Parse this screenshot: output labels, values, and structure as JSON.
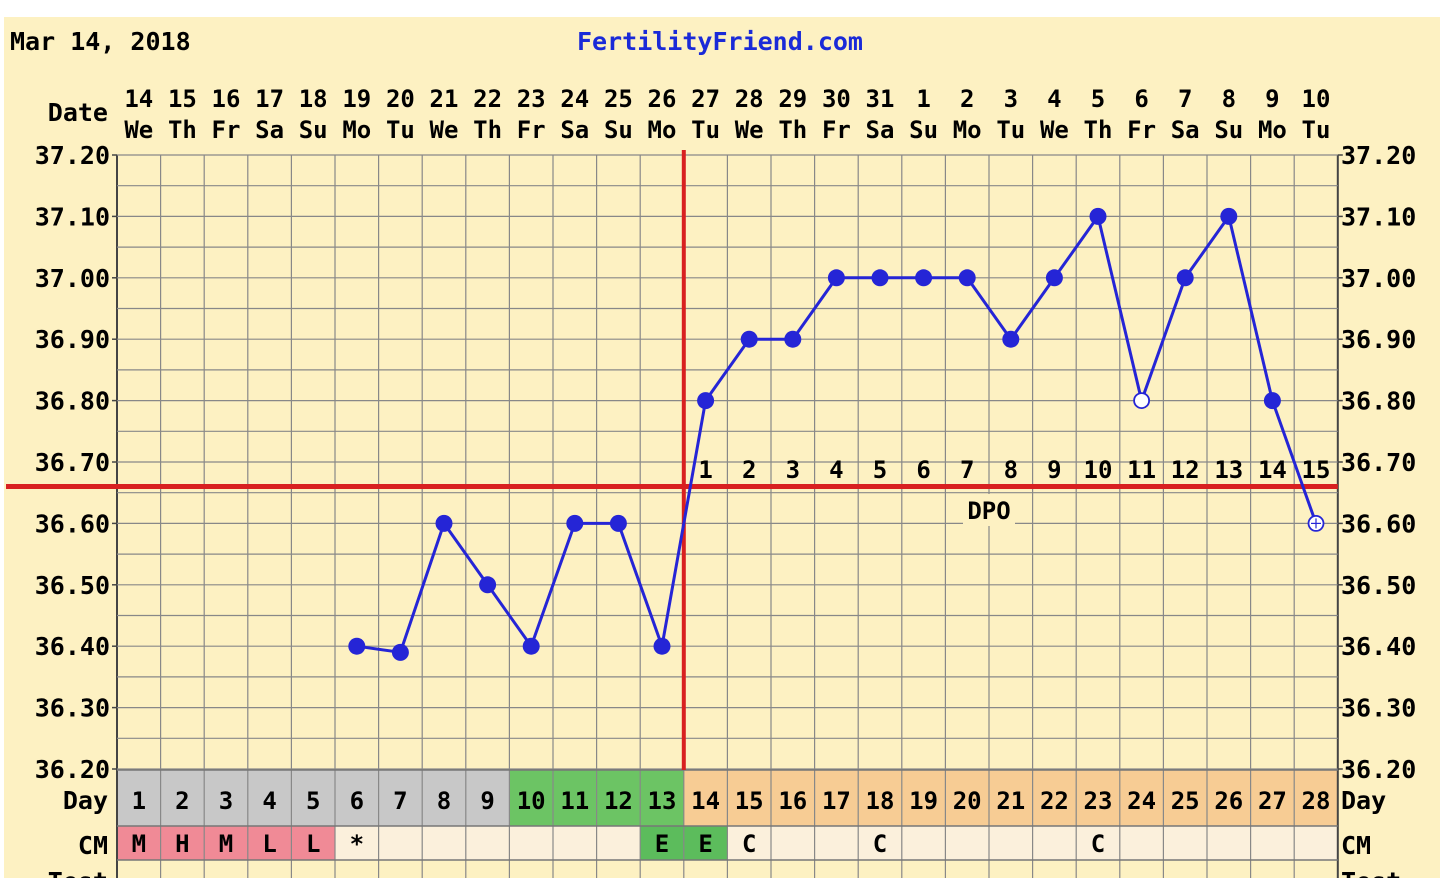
{
  "header": {
    "date": "Mar 14, 2018",
    "site": "FertilityFriend.com"
  },
  "labels": {
    "date": "Date",
    "day": "Day",
    "cm": "CM",
    "test": "Test",
    "dpo": "DPO"
  },
  "colors": {
    "background": "#fdf1c2",
    "grid": "#888888",
    "line": "#2525d6",
    "coverline": "#d82020",
    "site_link": "#1a2ad8",
    "menstruation": "#f08a96",
    "early_days": "#c8c8c8",
    "fertile_days": "#6cc464",
    "luteal_days": "#f7cc94",
    "cm_bg": "#fbf0dc",
    "fertile_cm": "#5cbc5c"
  },
  "chart_data": {
    "type": "line",
    "ylim": [
      36.2,
      37.2
    ],
    "y_ticks": [
      "36.20",
      "36.30",
      "36.40",
      "36.50",
      "36.60",
      "36.70",
      "36.80",
      "36.90",
      "37.00",
      "37.10",
      "37.20"
    ],
    "dates": [
      "14",
      "15",
      "16",
      "17",
      "18",
      "19",
      "20",
      "21",
      "22",
      "23",
      "24",
      "25",
      "26",
      "27",
      "28",
      "29",
      "30",
      "31",
      "1",
      "2",
      "3",
      "4",
      "5",
      "6",
      "7",
      "8",
      "9",
      "10"
    ],
    "weekdays": [
      "We",
      "Th",
      "Fr",
      "Sa",
      "Su",
      "Mo",
      "Tu",
      "We",
      "Th",
      "Fr",
      "Sa",
      "Su",
      "Mo",
      "Tu",
      "We",
      "Th",
      "Fr",
      "Sa",
      "Su",
      "Mo",
      "Tu",
      "We",
      "Th",
      "Fr",
      "Sa",
      "Su",
      "Mo",
      "Tu"
    ],
    "cycle_days": [
      "1",
      "2",
      "3",
      "4",
      "5",
      "6",
      "7",
      "8",
      "9",
      "10",
      "11",
      "12",
      "13",
      "14",
      "15",
      "16",
      "17",
      "18",
      "19",
      "20",
      "21",
      "22",
      "23",
      "24",
      "25",
      "26",
      "27",
      "28"
    ],
    "temperatures": [
      null,
      null,
      null,
      null,
      null,
      36.4,
      36.39,
      36.6,
      36.5,
      36.4,
      36.6,
      36.6,
      36.4,
      36.8,
      36.9,
      36.9,
      37.0,
      37.0,
      37.0,
      37.0,
      36.9,
      37.0,
      37.1,
      36.8,
      37.0,
      37.1,
      36.8,
      36.6
    ],
    "open_points": [
      23,
      27
    ],
    "coverline": 36.66,
    "ovulation_day": 13,
    "dpo": [
      "1",
      "2",
      "3",
      "4",
      "5",
      "6",
      "7",
      "8",
      "9",
      "10",
      "11",
      "12",
      "13",
      "14",
      "15"
    ],
    "cervical_mucus": [
      "M",
      "H",
      "M",
      "L",
      "L",
      "*",
      "",
      "",
      "",
      "",
      "",
      "",
      "E",
      "E",
      "C",
      "",
      "",
      "C",
      "",
      "",
      "",
      "",
      "C",
      "",
      "",
      "",
      "",
      ""
    ],
    "grid": true
  }
}
